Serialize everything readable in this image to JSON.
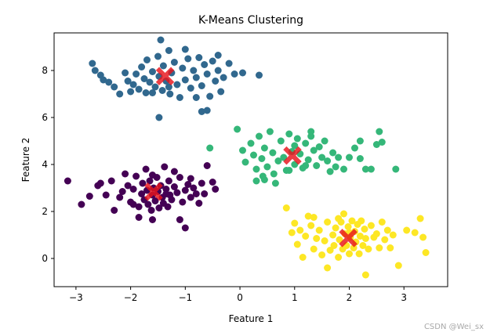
{
  "chart_data": {
    "type": "scatter",
    "title": "K-Means Clustering",
    "xlabel": "Feature 1",
    "ylabel": "Feature 2",
    "xlim": [
      -3.4,
      3.8
    ],
    "ylim": [
      -1.2,
      9.6
    ],
    "xticks": [
      -3,
      -2,
      -1,
      0,
      1,
      2,
      3
    ],
    "yticks": [
      0,
      2,
      4,
      6,
      8
    ],
    "grid": false,
    "legend": "none",
    "series": [
      {
        "color": "#31688e",
        "points": [
          [
            -2.7,
            8.3
          ],
          [
            -2.65,
            8.0
          ],
          [
            -2.55,
            7.8
          ],
          [
            -2.4,
            7.5
          ],
          [
            -2.3,
            7.3
          ],
          [
            -2.2,
            7.0
          ],
          [
            -2.1,
            7.9
          ],
          [
            -2.05,
            7.55
          ],
          [
            -1.95,
            7.4
          ],
          [
            -1.9,
            7.85
          ],
          [
            -1.85,
            7.2
          ],
          [
            -1.8,
            8.15
          ],
          [
            -1.75,
            7.65
          ],
          [
            -1.72,
            7.05
          ],
          [
            -1.7,
            8.45
          ],
          [
            -1.65,
            7.5
          ],
          [
            -1.6,
            7.95
          ],
          [
            -1.55,
            7.3
          ],
          [
            -1.5,
            8.6
          ],
          [
            -1.48,
            7.75
          ],
          [
            -1.45,
            9.3
          ],
          [
            -1.42,
            7.15
          ],
          [
            -1.4,
            8.2
          ],
          [
            -1.35,
            7.55
          ],
          [
            -1.3,
            8.85
          ],
          [
            -1.28,
            7.0
          ],
          [
            -1.25,
            7.9
          ],
          [
            -1.2,
            8.35
          ],
          [
            -1.15,
            7.4
          ],
          [
            -1.1,
            6.85
          ],
          [
            -1.05,
            8.1
          ],
          [
            -1.0,
            7.6
          ],
          [
            -0.95,
            8.5
          ],
          [
            -0.9,
            7.25
          ],
          [
            -0.85,
            8.0
          ],
          [
            -0.8,
            7.7
          ],
          [
            -0.75,
            8.55
          ],
          [
            -0.7,
            7.35
          ],
          [
            -0.65,
            8.25
          ],
          [
            -0.6,
            7.85
          ],
          [
            -0.55,
            6.9
          ],
          [
            -0.5,
            8.4
          ],
          [
            -0.45,
            7.55
          ],
          [
            -0.4,
            8.0
          ],
          [
            -0.35,
            7.1
          ],
          [
            -0.3,
            7.7
          ],
          [
            -0.2,
            8.3
          ],
          [
            -0.1,
            7.85
          ],
          [
            -0.6,
            6.3
          ],
          [
            -0.7,
            6.25
          ],
          [
            -1.48,
            6.0
          ],
          [
            -1.6,
            7.05
          ],
          [
            -2.0,
            7.1
          ],
          [
            -1.3,
            7.3
          ],
          [
            -0.8,
            6.85
          ],
          [
            0.35,
            7.8
          ],
          [
            0.05,
            7.9
          ],
          [
            -0.4,
            8.65
          ],
          [
            -2.5,
            7.6
          ],
          [
            -1.0,
            8.9
          ]
        ]
      },
      {
        "color": "#35b779",
        "points": [
          [
            -0.55,
            4.7
          ],
          [
            -0.05,
            5.5
          ],
          [
            0.05,
            4.6
          ],
          [
            0.1,
            4.1
          ],
          [
            0.2,
            4.9
          ],
          [
            0.25,
            4.4
          ],
          [
            0.3,
            3.8
          ],
          [
            0.35,
            5.2
          ],
          [
            0.4,
            4.25
          ],
          [
            0.42,
            3.5
          ],
          [
            0.45,
            4.7
          ],
          [
            0.5,
            3.9
          ],
          [
            0.55,
            5.4
          ],
          [
            0.6,
            4.5
          ],
          [
            0.62,
            3.6
          ],
          [
            0.7,
            4.15
          ],
          [
            0.75,
            5.0
          ],
          [
            0.8,
            4.3
          ],
          [
            0.85,
            3.75
          ],
          [
            0.9,
            5.3
          ],
          [
            0.95,
            4.55
          ],
          [
            1.0,
            4.0
          ],
          [
            1.05,
            5.1
          ],
          [
            1.1,
            4.45
          ],
          [
            1.15,
            3.85
          ],
          [
            1.2,
            4.9
          ],
          [
            1.25,
            4.2
          ],
          [
            1.3,
            5.2
          ],
          [
            1.35,
            4.6
          ],
          [
            1.4,
            3.95
          ],
          [
            1.45,
            4.75
          ],
          [
            1.5,
            4.3
          ],
          [
            1.55,
            5.0
          ],
          [
            1.6,
            4.15
          ],
          [
            1.65,
            3.7
          ],
          [
            1.7,
            4.5
          ],
          [
            1.75,
            3.9
          ],
          [
            1.8,
            4.3
          ],
          [
            1.9,
            3.8
          ],
          [
            2.0,
            4.3
          ],
          [
            2.1,
            4.7
          ],
          [
            2.2,
            4.25
          ],
          [
            2.3,
            3.8
          ],
          [
            2.4,
            3.8
          ],
          [
            2.5,
            4.85
          ],
          [
            2.55,
            5.4
          ],
          [
            2.6,
            4.95
          ],
          [
            2.85,
            3.8
          ],
          [
            0.3,
            3.3
          ],
          [
            0.45,
            3.35
          ],
          [
            0.9,
            3.75
          ],
          [
            1.2,
            3.95
          ],
          [
            1.3,
            5.4
          ],
          [
            2.2,
            5.0
          ],
          [
            1.0,
            4.8
          ],
          [
            0.65,
            3.2
          ]
        ]
      },
      {
        "color": "#440154",
        "points": [
          [
            -3.15,
            3.3
          ],
          [
            -2.9,
            2.3
          ],
          [
            -2.75,
            2.65
          ],
          [
            -2.6,
            3.1
          ],
          [
            -2.55,
            3.2
          ],
          [
            -2.45,
            2.7
          ],
          [
            -2.35,
            3.3
          ],
          [
            -2.2,
            2.6
          ],
          [
            -2.15,
            2.85
          ],
          [
            -2.1,
            3.6
          ],
          [
            -2.05,
            3.1
          ],
          [
            -2.0,
            2.4
          ],
          [
            -1.95,
            2.95
          ],
          [
            -1.9,
            3.5
          ],
          [
            -1.85,
            2.2
          ],
          [
            -1.8,
            2.75
          ],
          [
            -1.78,
            3.2
          ],
          [
            -1.75,
            2.5
          ],
          [
            -1.72,
            3.8
          ],
          [
            -1.7,
            2.9
          ],
          [
            -1.68,
            2.3
          ],
          [
            -1.65,
            3.3
          ],
          [
            -1.62,
            2.05
          ],
          [
            -1.6,
            2.7
          ],
          [
            -1.58,
            3.0
          ],
          [
            -1.55,
            2.45
          ],
          [
            -1.52,
            3.45
          ],
          [
            -1.5,
            2.85
          ],
          [
            -1.48,
            2.15
          ],
          [
            -1.45,
            3.1
          ],
          [
            -1.42,
            2.6
          ],
          [
            -1.4,
            2.35
          ],
          [
            -1.38,
            3.9
          ],
          [
            -1.35,
            2.95
          ],
          [
            -1.32,
            2.2
          ],
          [
            -1.3,
            3.3
          ],
          [
            -1.28,
            2.7
          ],
          [
            -1.25,
            2.5
          ],
          [
            -1.2,
            3.05
          ],
          [
            -1.15,
            2.8
          ],
          [
            -1.1,
            3.45
          ],
          [
            -1.05,
            2.4
          ],
          [
            -1.0,
            2.9
          ],
          [
            -0.95,
            3.15
          ],
          [
            -0.9,
            2.6
          ],
          [
            -0.85,
            3.0
          ],
          [
            -0.8,
            2.75
          ],
          [
            -0.75,
            2.35
          ],
          [
            -0.7,
            3.2
          ],
          [
            -0.65,
            2.75
          ],
          [
            -0.6,
            3.95
          ],
          [
            -0.5,
            3.25
          ],
          [
            -0.45,
            2.95
          ],
          [
            -1.85,
            1.75
          ],
          [
            -1.6,
            1.65
          ],
          [
            -1.0,
            1.3
          ],
          [
            -1.1,
            1.65
          ],
          [
            -2.3,
            2.05
          ],
          [
            -1.95,
            2.3
          ],
          [
            -1.35,
            2.75
          ],
          [
            -0.9,
            3.4
          ],
          [
            -1.2,
            3.7
          ],
          [
            -1.6,
            3.55
          ]
        ]
      },
      {
        "color": "#fde725",
        "points": [
          [
            0.85,
            2.15
          ],
          [
            0.95,
            1.1
          ],
          [
            1.0,
            1.5
          ],
          [
            1.05,
            0.6
          ],
          [
            1.1,
            1.2
          ],
          [
            1.15,
            0.05
          ],
          [
            1.2,
            0.95
          ],
          [
            1.25,
            1.8
          ],
          [
            1.3,
            1.4
          ],
          [
            1.35,
            0.4
          ],
          [
            1.4,
            0.85
          ],
          [
            1.45,
            1.2
          ],
          [
            1.5,
            0.15
          ],
          [
            1.55,
            0.75
          ],
          [
            1.6,
            1.55
          ],
          [
            1.65,
            0.35
          ],
          [
            1.7,
            1.0
          ],
          [
            1.72,
            0.55
          ],
          [
            1.75,
            1.3
          ],
          [
            1.8,
            0.05
          ],
          [
            1.82,
            0.8
          ],
          [
            1.85,
            1.55
          ],
          [
            1.88,
            0.4
          ],
          [
            1.9,
            1.9
          ],
          [
            1.92,
            1.05
          ],
          [
            1.95,
            0.55
          ],
          [
            1.98,
            1.35
          ],
          [
            2.0,
            0.2
          ],
          [
            2.02,
            0.9
          ],
          [
            2.05,
            1.6
          ],
          [
            2.08,
            0.45
          ],
          [
            2.1,
            1.15
          ],
          [
            2.12,
            0.7
          ],
          [
            2.15,
            1.45
          ],
          [
            2.18,
            0.2
          ],
          [
            2.2,
            0.95
          ],
          [
            2.22,
            1.6
          ],
          [
            2.25,
            0.55
          ],
          [
            2.28,
            1.25
          ],
          [
            2.3,
            0.85
          ],
          [
            2.35,
            0.4
          ],
          [
            2.4,
            1.4
          ],
          [
            2.45,
            0.9
          ],
          [
            2.5,
            1.05
          ],
          [
            2.55,
            0.45
          ],
          [
            2.6,
            1.55
          ],
          [
            2.65,
            0.8
          ],
          [
            2.7,
            1.2
          ],
          [
            2.75,
            0.45
          ],
          [
            2.8,
            1.0
          ],
          [
            2.9,
            -0.3
          ],
          [
            3.05,
            1.2
          ],
          [
            3.2,
            1.1
          ],
          [
            3.3,
            1.7
          ],
          [
            3.35,
            0.9
          ],
          [
            3.4,
            0.25
          ],
          [
            1.6,
            -0.4
          ],
          [
            2.3,
            -0.7
          ],
          [
            1.35,
            1.75
          ],
          [
            1.8,
            1.7
          ],
          [
            2.0,
            1.1
          ]
        ]
      }
    ],
    "centroids": {
      "color": "#e8141b",
      "points": [
        [
          -1.37,
          7.76
        ],
        [
          0.96,
          4.38
        ],
        [
          -1.58,
          2.84
        ],
        [
          1.98,
          0.87
        ]
      ]
    }
  },
  "watermark": "CSDN @Wei_sx"
}
